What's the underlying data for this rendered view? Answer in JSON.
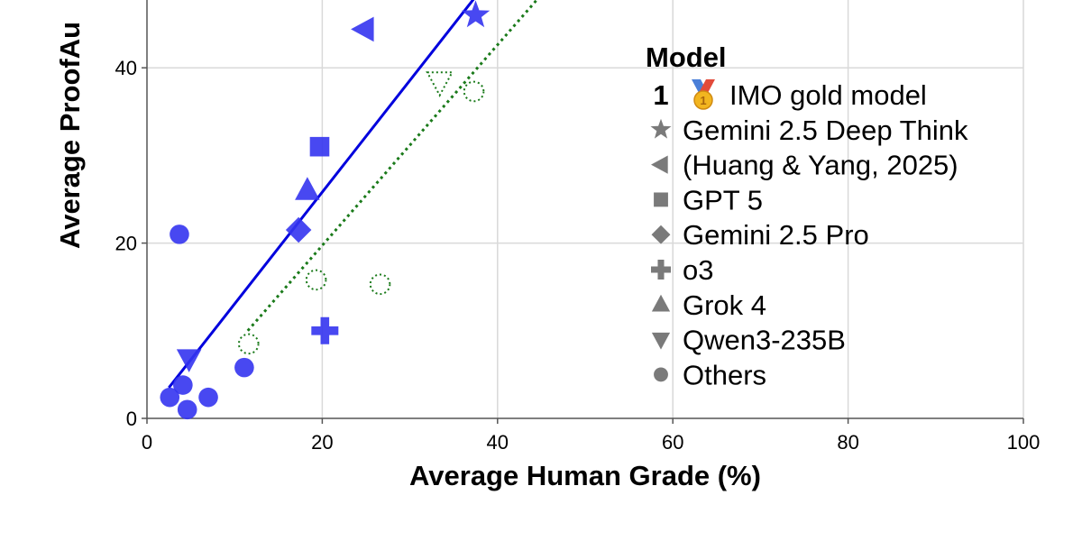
{
  "chart_data": {
    "type": "scatter",
    "xlabel": "Average Human Grade (%)",
    "ylabel": "Average ProofAu",
    "xlim": [
      0,
      100
    ],
    "ylim": [
      0,
      48
    ],
    "x_ticks": [
      0,
      20,
      40,
      60,
      80,
      100
    ],
    "y_ticks": [
      0,
      20,
      40
    ],
    "grid": true,
    "legend_position": "right",
    "colors": {
      "points": "#3434f0",
      "fit_line": "#0000dd",
      "dotted": "#1a7a1a",
      "legend_marker": "#7a7a7a"
    },
    "legend": {
      "title": "Model",
      "entries": [
        {
          "marker": "one-gold-medal-icon",
          "label": "IMO gold model"
        },
        {
          "marker": "star",
          "label": "Gemini 2.5 Deep Think"
        },
        {
          "marker": "triangle-left",
          "label": "(Huang & Yang, 2025)"
        },
        {
          "marker": "square",
          "label": "GPT 5"
        },
        {
          "marker": "diamond",
          "label": "Gemini 2.5 Pro"
        },
        {
          "marker": "cross",
          "label": "o3"
        },
        {
          "marker": "triangle-up",
          "label": "Grok 4"
        },
        {
          "marker": "triangle-down",
          "label": "Qwen3-235B"
        },
        {
          "marker": "circle",
          "label": "Others"
        }
      ]
    },
    "legend_medal_glyph": "1",
    "series": [
      {
        "style": "filled-blue",
        "points": [
          {
            "model": "Gemini 2.5 Deep Think",
            "shape": "star",
            "x": 37.5,
            "y": 46.0
          },
          {
            "model": "(Huang & Yang, 2025)",
            "shape": "triangle-left",
            "x": 24.8,
            "y": 44.4
          },
          {
            "model": "GPT 5",
            "shape": "square",
            "x": 19.7,
            "y": 31.0
          },
          {
            "model": "Grok 4",
            "shape": "triangle-up",
            "x": 18.3,
            "y": 26.0
          },
          {
            "model": "Gemini 2.5 Pro",
            "shape": "diamond",
            "x": 17.3,
            "y": 21.5
          },
          {
            "model": "o3",
            "shape": "cross",
            "x": 20.3,
            "y": 10.0
          },
          {
            "model": "Qwen3-235B",
            "shape": "triangle-down",
            "x": 4.8,
            "y": 6.8
          },
          {
            "model": "Others",
            "shape": "circle",
            "x": 3.7,
            "y": 21.0
          },
          {
            "model": "Others",
            "shape": "circle",
            "x": 11.1,
            "y": 5.8
          },
          {
            "model": "Others",
            "shape": "circle",
            "x": 4.1,
            "y": 3.8
          },
          {
            "model": "Others",
            "shape": "circle",
            "x": 2.6,
            "y": 2.4
          },
          {
            "model": "Others",
            "shape": "circle",
            "x": 7.0,
            "y": 2.4
          },
          {
            "model": "Others",
            "shape": "circle",
            "x": 4.6,
            "y": 1.0
          }
        ]
      },
      {
        "style": "hollow-dotted-green",
        "points": [
          {
            "shape": "triangle-down",
            "x": 33.4,
            "y": 38.4
          },
          {
            "shape": "circle",
            "x": 37.3,
            "y": 37.3
          },
          {
            "shape": "circle",
            "x": 19.3,
            "y": 15.8
          },
          {
            "shape": "circle",
            "x": 26.6,
            "y": 15.3
          },
          {
            "shape": "circle",
            "x": 11.6,
            "y": 8.5
          }
        ]
      }
    ],
    "lines": [
      {
        "style": "solid-blue",
        "from": {
          "x": 2.5,
          "y": 3.5
        },
        "to": {
          "x": 37.4,
          "y": 48
        }
      },
      {
        "style": "dotted-green",
        "from": {
          "x": 11.5,
          "y": 10.0
        },
        "to": {
          "x": 44.7,
          "y": 48
        }
      }
    ]
  }
}
